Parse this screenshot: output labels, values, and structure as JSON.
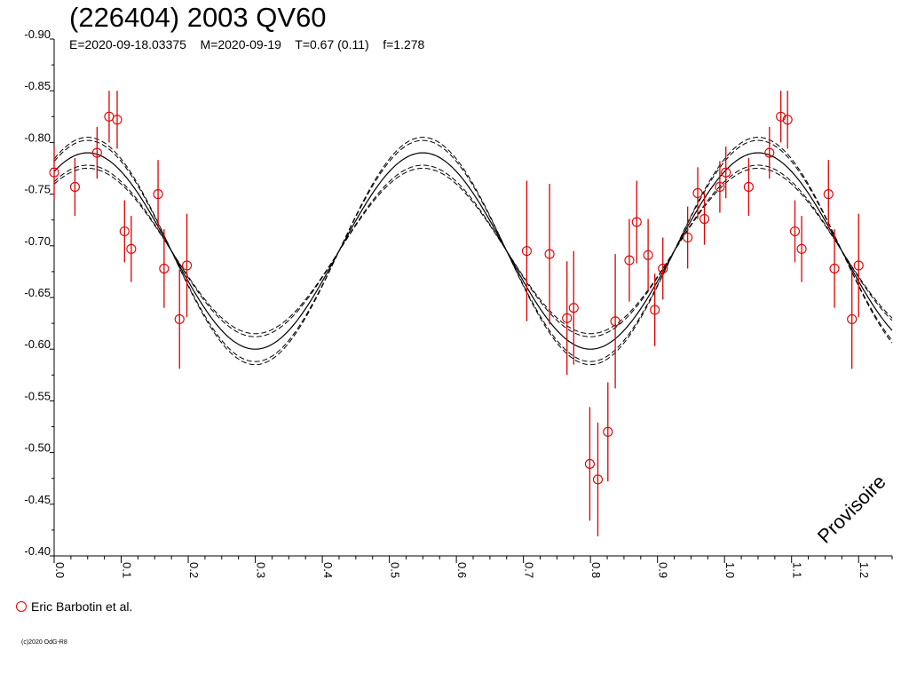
{
  "title": "(226404) 2003 QV60",
  "subtitle": "E=2020-09-18.03375    M=2020-09-19    T=0.67 (0.11)    f=1.278",
  "watermark": "Provisoire",
  "legend": {
    "label": "Eric Barbotin et al.",
    "marker_color": "#dd0000"
  },
  "copyright": "(c)2020 OdG-R8",
  "colors": {
    "points": "#dd0000",
    "curve": "#000000"
  },
  "chart_data": {
    "type": "scatter",
    "title": "(226404) 2003 QV60",
    "xlabel": "",
    "ylabel": "",
    "xlim": [
      0,
      1.25
    ],
    "ylim": [
      -0.4,
      -0.9
    ],
    "y_axis_inverted": true,
    "x_ticks": [
      "0.0",
      "0.1",
      "0.2",
      "0.3",
      "0.4",
      "0.5",
      "0.6",
      "0.7",
      "0.8",
      "0.9",
      "1.0",
      "1.1",
      "1.2"
    ],
    "y_ticks": [
      "-0.90",
      "-0.85",
      "-0.80",
      "-0.75",
      "-0.70",
      "-0.65",
      "-0.60",
      "-0.55",
      "-0.50",
      "-0.45",
      "-0.40"
    ],
    "grid": false,
    "legend_position": "bottom-left",
    "series": [
      {
        "name": "Eric Barbotin et al.",
        "points": [
          {
            "x": 0.0,
            "y": -0.771,
            "err": 0.025
          },
          {
            "x": 0.031,
            "y": -0.757,
            "err": 0.028
          },
          {
            "x": 0.064,
            "y": -0.79,
            "err": 0.025
          },
          {
            "x": 0.082,
            "y": -0.825,
            "err": 0.025
          },
          {
            "x": 0.094,
            "y": -0.822,
            "err": 0.028
          },
          {
            "x": 0.105,
            "y": -0.714,
            "err": 0.03
          },
          {
            "x": 0.115,
            "y": -0.697,
            "err": 0.032
          },
          {
            "x": 0.155,
            "y": -0.75,
            "err": 0.033
          },
          {
            "x": 0.164,
            "y": -0.678,
            "err": 0.038
          },
          {
            "x": 0.187,
            "y": -0.629,
            "err": 0.048
          },
          {
            "x": 0.198,
            "y": -0.681,
            "err": 0.05
          },
          {
            "x": 0.705,
            "y": -0.695,
            "err": 0.068
          },
          {
            "x": 0.739,
            "y": -0.692,
            "err": 0.068
          },
          {
            "x": 0.765,
            "y": -0.63,
            "err": 0.055
          },
          {
            "x": 0.775,
            "y": -0.64,
            "err": 0.055
          },
          {
            "x": 0.799,
            "y": -0.489,
            "err": 0.055
          },
          {
            "x": 0.811,
            "y": -0.474,
            "err": 0.055
          },
          {
            "x": 0.826,
            "y": -0.52,
            "err": 0.048
          },
          {
            "x": 0.837,
            "y": -0.627,
            "err": 0.065
          },
          {
            "x": 0.858,
            "y": -0.686,
            "err": 0.04
          },
          {
            "x": 0.869,
            "y": -0.723,
            "err": 0.04
          },
          {
            "x": 0.886,
            "y": -0.691,
            "err": 0.035
          },
          {
            "x": 0.896,
            "y": -0.638,
            "err": 0.035
          },
          {
            "x": 0.908,
            "y": -0.678,
            "err": 0.03
          },
          {
            "x": 0.945,
            "y": -0.708,
            "err": 0.03
          },
          {
            "x": 0.96,
            "y": -0.751,
            "err": 0.025
          },
          {
            "x": 0.97,
            "y": -0.726,
            "err": 0.025
          },
          {
            "x": 0.993,
            "y": -0.757,
            "err": 0.025
          },
          {
            "x": 1.002,
            "y": -0.771,
            "err": 0.025
          },
          {
            "x": 1.036,
            "y": -0.757,
            "err": 0.028
          },
          {
            "x": 1.067,
            "y": -0.79,
            "err": 0.025
          },
          {
            "x": 1.084,
            "y": -0.825,
            "err": 0.025
          },
          {
            "x": 1.094,
            "y": -0.822,
            "err": 0.028
          },
          {
            "x": 1.105,
            "y": -0.714,
            "err": 0.03
          },
          {
            "x": 1.115,
            "y": -0.697,
            "err": 0.032
          },
          {
            "x": 1.155,
            "y": -0.75,
            "err": 0.033
          },
          {
            "x": 1.164,
            "y": -0.678,
            "err": 0.038
          },
          {
            "x": 1.19,
            "y": -0.629,
            "err": 0.048
          },
          {
            "x": 1.2,
            "y": -0.681,
            "err": 0.05
          }
        ]
      }
    ],
    "model_curve": {
      "type": "line",
      "period_phase": 0.5,
      "mean": -0.695,
      "amplitude": 0.095,
      "max_phase": 0.05,
      "envelope_offsets": [
        0.012,
        0.015
      ],
      "envelope_dashed": true
    }
  }
}
